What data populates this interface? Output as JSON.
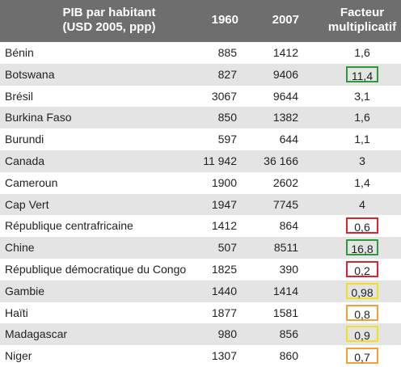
{
  "table": {
    "header": [
      "PIB par habitant\n(USD 2005, ppp)",
      "1960",
      "2007",
      "Facteur\nmultiplicatif"
    ],
    "rows": [
      {
        "country": "Bénin",
        "y1960": "885",
        "y2007": "1412",
        "factor": "1,6"
      },
      {
        "country": "Botswana",
        "y1960": "827",
        "y2007": "9406",
        "factor": "11,4",
        "highlight": "#2e9a3a"
      },
      {
        "country": "Brésil",
        "y1960": "3067",
        "y2007": "9644",
        "factor": "3,1"
      },
      {
        "country": "Burkina Faso",
        "y1960": "850",
        "y2007": "1382",
        "factor": "1,6"
      },
      {
        "country": "Burundi",
        "y1960": "597",
        "y2007": "644",
        "factor": "1,1"
      },
      {
        "country": "Canada",
        "y1960": "11 942",
        "y2007": "36 166",
        "factor": "3"
      },
      {
        "country": "Cameroun",
        "y1960": "1900",
        "y2007": "2602",
        "factor": "1,4"
      },
      {
        "country": "Cap Vert",
        "y1960": "1947",
        "y2007": "7745",
        "factor": "4"
      },
      {
        "country": "République centrafricaine",
        "y1960": "1412",
        "y2007": "864",
        "factor": "0,6",
        "highlight": "#e0202a"
      },
      {
        "country": "Chine",
        "y1960": "507",
        "y2007": "8511",
        "factor": "16,8",
        "highlight": "#2e9a3a"
      },
      {
        "country": "République démocratique du Congo",
        "y1960": "1825",
        "y2007": "390",
        "factor": "0,2",
        "highlight": "#e0202a"
      },
      {
        "country": "Gambie",
        "y1960": "1440",
        "y2007": "1414",
        "factor": "0,98",
        "highlight": "#f0e020"
      },
      {
        "country": "Haïti",
        "y1960": "1877",
        "y2007": "1581",
        "factor": "0,8",
        "highlight": "#f5a030"
      },
      {
        "country": "Madagascar",
        "y1960": "980",
        "y2007": "856",
        "factor": "0,9",
        "highlight": "#f0e020"
      },
      {
        "country": "Niger",
        "y1960": "1307",
        "y2007": "860",
        "factor": "0,7",
        "highlight": "#f5a030"
      }
    ]
  }
}
